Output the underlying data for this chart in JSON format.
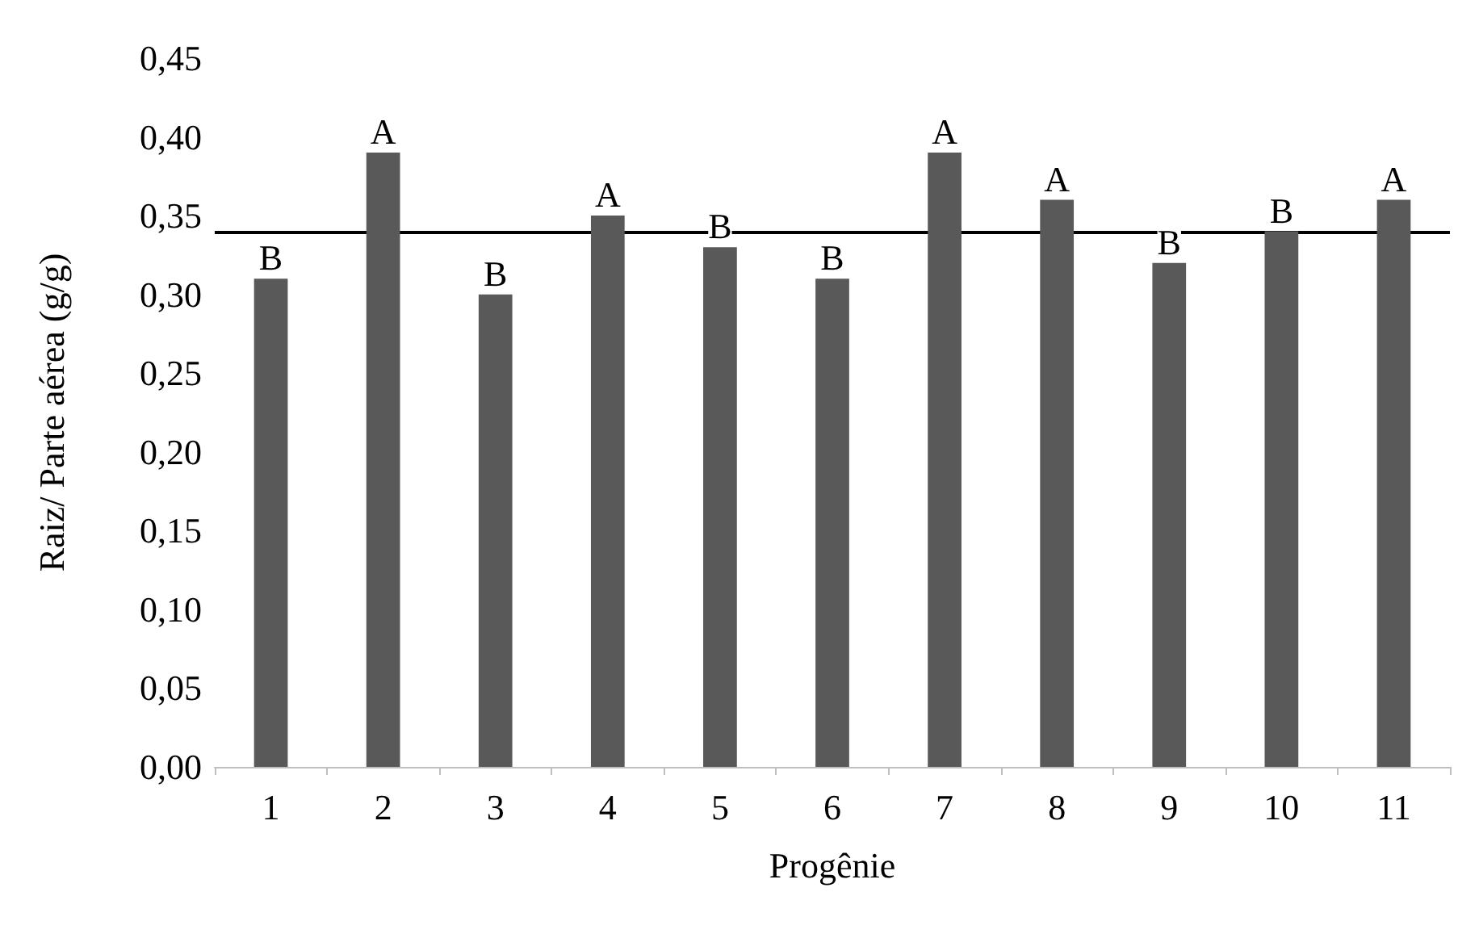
{
  "chart_data": {
    "type": "bar",
    "xlabel": "Progênie",
    "ylabel": "Raiz/ Parte aérea (g/g)",
    "categories": [
      "1",
      "2",
      "3",
      "4",
      "5",
      "6",
      "7",
      "8",
      "9",
      "10",
      "11"
    ],
    "values": [
      0.31,
      0.39,
      0.3,
      0.35,
      0.33,
      0.31,
      0.39,
      0.36,
      0.32,
      0.34,
      0.36
    ],
    "value_labels": [
      "B",
      "A",
      "B",
      "A",
      "B",
      "B",
      "A",
      "A",
      "B",
      "B",
      "A"
    ],
    "color": "#595959",
    "ylim": [
      0,
      0.45
    ],
    "yticks": [
      {
        "value": 0,
        "label": "0,00"
      },
      {
        "value": 0.05,
        "label": "0,05"
      },
      {
        "value": 0.1,
        "label": "0,10"
      },
      {
        "value": 0.15,
        "label": "0,15"
      },
      {
        "value": 0.2,
        "label": "0,20"
      },
      {
        "value": 0.25,
        "label": "0,25"
      },
      {
        "value": 0.3,
        "label": "0,30"
      },
      {
        "value": 0.35,
        "label": "0,35"
      },
      {
        "value": 0.4,
        "label": "0,40"
      },
      {
        "value": 0.45,
        "label": "0,45"
      }
    ],
    "ref_lines": [
      {
        "axis": "y",
        "value": 0.34,
        "color": "#000000",
        "line_style": "solid"
      }
    ],
    "grid": false
  }
}
